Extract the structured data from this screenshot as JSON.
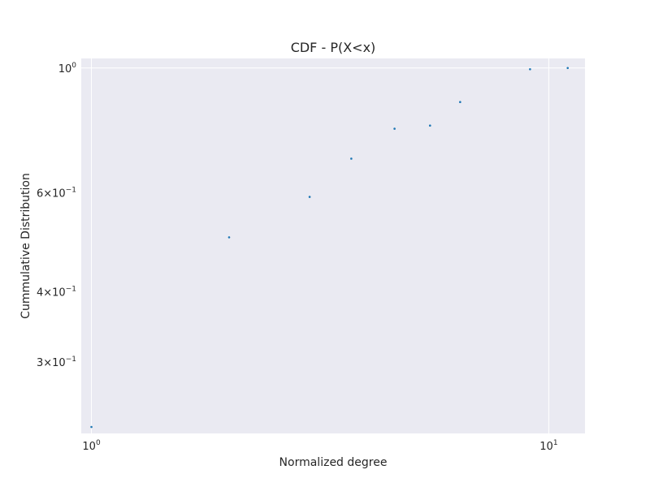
{
  "chart_data": {
    "type": "scatter",
    "title": "CDF - P(X<x)",
    "xlabel": "Normalized degree",
    "ylabel": "Cummulative Distribution",
    "xscale": "log",
    "yscale": "log",
    "xlim": [
      0.95,
      12.0
    ],
    "ylim": [
      0.224,
      1.04
    ],
    "grid": true,
    "series": [
      {
        "x": [
          1.0,
          2.0,
          3.0,
          3.7,
          4.6,
          5.5,
          6.4,
          9.1,
          11.0
        ],
        "y": [
          0.23,
          0.5,
          0.59,
          0.69,
          0.78,
          0.79,
          0.87,
          0.995,
          1.0
        ]
      }
    ],
    "x_ticks": [
      {
        "value": 1,
        "base": "10",
        "exp": "0"
      },
      {
        "value": 10,
        "base": "10",
        "exp": "1"
      }
    ],
    "y_ticks": [
      {
        "value": 0.3,
        "mant": "3",
        "base": "10",
        "exp": "−1"
      },
      {
        "value": 0.4,
        "mant": "4",
        "base": "10",
        "exp": "−1"
      },
      {
        "value": 0.6,
        "mant": "6",
        "base": "10",
        "exp": "−1"
      },
      {
        "value": 1.0,
        "mant": "",
        "base": "10",
        "exp": "0"
      }
    ],
    "colors": {
      "background": "#eaeaf2",
      "grid": "#ffffff",
      "point": "#1f77b4",
      "text": "#262626"
    }
  }
}
